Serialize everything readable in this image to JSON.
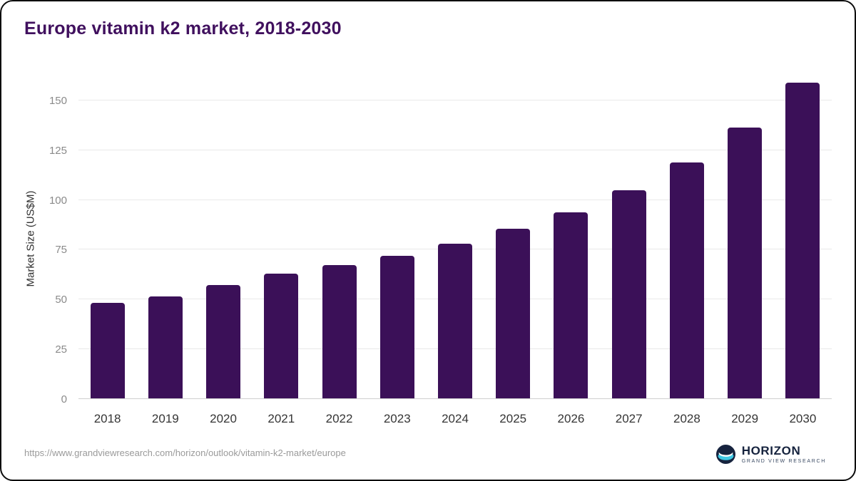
{
  "header": {
    "title": "Europe vitamin k2 market, 2018-2030"
  },
  "chart_data": {
    "type": "bar",
    "title": "Europe vitamin k2 market, 2018-2030",
    "xlabel": "",
    "ylabel": "Market Size (US$M)",
    "categories": [
      "2018",
      "2019",
      "2020",
      "2021",
      "2022",
      "2023",
      "2024",
      "2025",
      "2026",
      "2027",
      "2028",
      "2029",
      "2030"
    ],
    "values": [
      48,
      51,
      57,
      62.5,
      67,
      71.5,
      77.5,
      85,
      93.5,
      104.5,
      118.5,
      136,
      158.5
    ],
    "yticks": [
      0,
      25,
      50,
      75,
      100,
      125,
      150
    ],
    "ylim": [
      0,
      161
    ],
    "grid": "horizontal",
    "legend": "none"
  },
  "colors": {
    "bar": "#3b1058",
    "title": "#40105e",
    "gridline": "#e9e9e9",
    "logo_navy": "#16233e",
    "logo_teal": "#3fc8e4"
  },
  "footer": {
    "source_url": "https://www.grandviewresearch.com/horizon/outlook/vitamin-k2-market/europe",
    "logo": {
      "name": "HORIZON",
      "subtitle": "GRAND VIEW RESEARCH"
    }
  }
}
